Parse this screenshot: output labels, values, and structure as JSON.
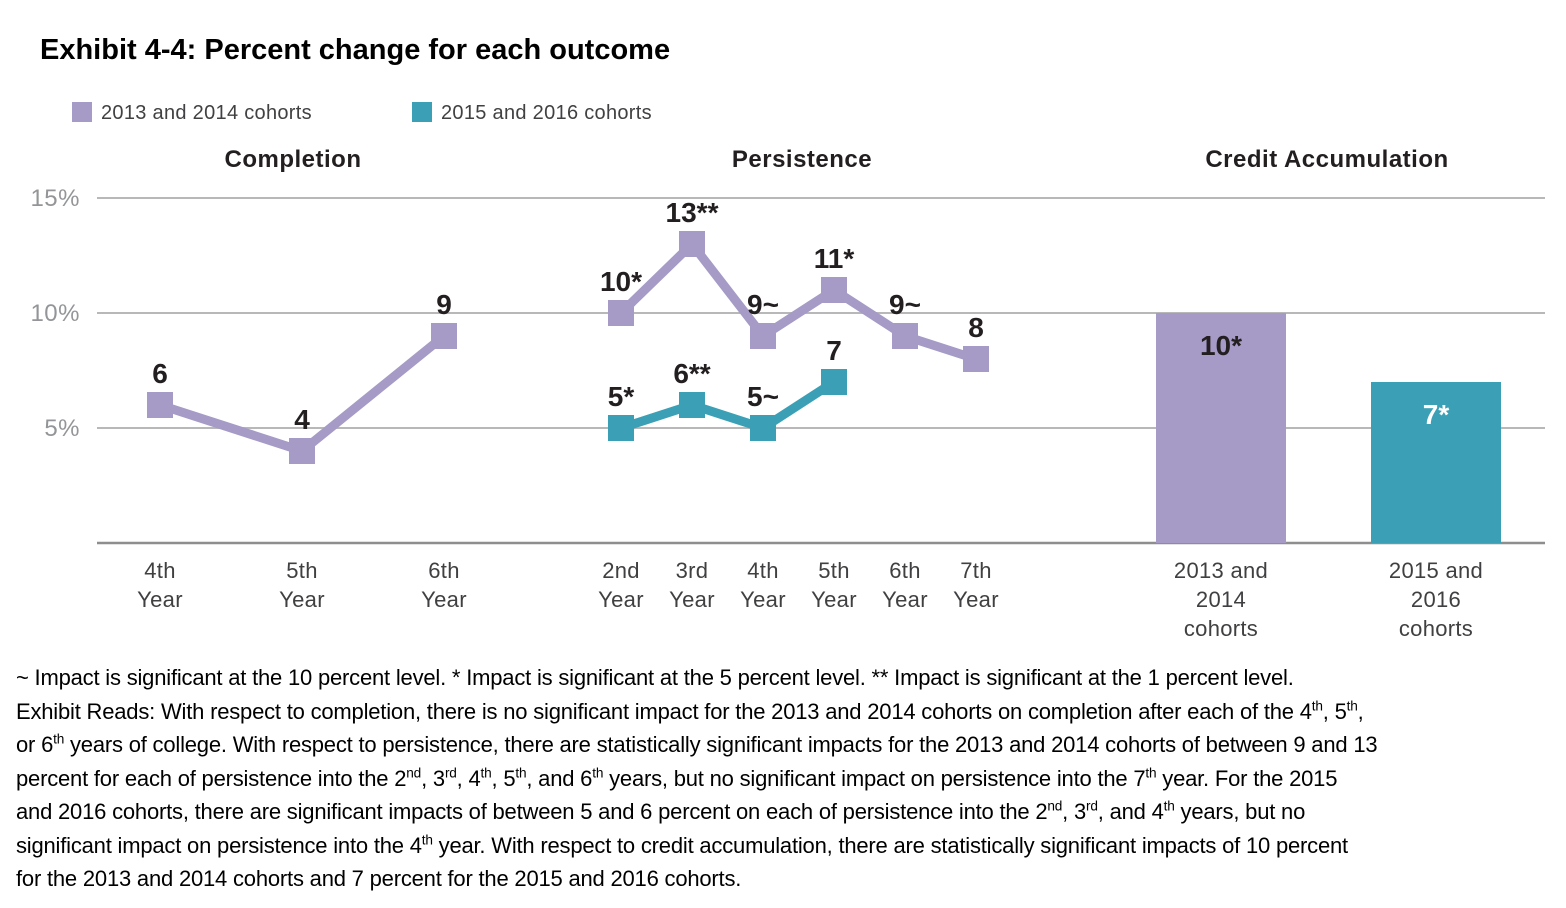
{
  "title": "Exhibit 4-4: Percent change for each outcome",
  "legend": [
    {
      "label": "2013 and 2014 cohorts",
      "color": "#a69ac6"
    },
    {
      "label": "2015 and 2016 cohorts",
      "color": "#3ba0b5"
    }
  ],
  "colors": {
    "purple": "#a69ac6",
    "teal": "#3ba0b5",
    "grid": "#b8b8b8",
    "axis": "#8e8e8e",
    "tick_text": "#939598",
    "label_black": "#231f20"
  },
  "chart_data": [
    {
      "type": "line",
      "title": "Completion",
      "categories": [
        "4th\nYear",
        "5th\nYear",
        "6th\nYear"
      ],
      "series": [
        {
          "name": "2013 and 2014 cohorts",
          "color": "#a69ac6",
          "values": [
            6,
            4,
            9
          ],
          "point_labels": [
            "6",
            "4",
            "9"
          ]
        }
      ],
      "ylim": [
        0,
        15
      ],
      "yticks": [
        {
          "value": 5,
          "label": "5%"
        },
        {
          "value": 10,
          "label": "10%"
        },
        {
          "value": 15,
          "label": "15%"
        }
      ],
      "grid": true,
      "legend_position": "top-left"
    },
    {
      "type": "line",
      "title": "Persistence",
      "categories": [
        "2nd\nYear",
        "3rd\nYear",
        "4th\nYear",
        "5th\nYear",
        "6th\nYear",
        "7th\nYear"
      ],
      "series": [
        {
          "name": "2013 and 2014 cohorts",
          "color": "#a69ac6",
          "values": [
            10,
            13,
            9,
            11,
            9,
            8
          ],
          "point_labels": [
            "10*",
            "13**",
            "9~",
            "11*",
            "9~",
            "8"
          ]
        },
        {
          "name": "2015 and 2016 cohorts",
          "color": "#3ba0b5",
          "values": [
            5,
            6,
            5,
            7
          ],
          "point_labels": [
            "5*",
            "6**",
            "5~",
            "7"
          ]
        }
      ],
      "ylim": [
        0,
        15
      ]
    },
    {
      "type": "bar",
      "title": "Credit Accumulation",
      "categories": [
        "2013 and\n2014\ncohorts",
        "2015 and\n2016\ncohorts"
      ],
      "bars": [
        {
          "name": "2013 and 2014 cohorts",
          "value": 10,
          "label": "10*",
          "color": "#a69ac6",
          "label_color": "#231f20"
        },
        {
          "name": "2015 and 2016 cohorts",
          "value": 7,
          "label": "7*",
          "color": "#3ba0b5",
          "label_color": "#ffffff"
        }
      ],
      "ylim": [
        0,
        15
      ]
    }
  ],
  "footnote": {
    "lines": [
      [
        {
          "t": "~ Impact is significant at the 10 percent level. * Impact is significant at the 5 percent level. ** Impact is significant at the 1 percent level."
        }
      ],
      [
        {
          "t": "Exhibit Reads: With respect to completion, there is no significant impact for the 2013 and 2014 cohorts on completion after each of the 4"
        },
        {
          "t": "th",
          "sup": true
        },
        {
          "t": ", 5"
        },
        {
          "t": "th",
          "sup": true
        },
        {
          "t": ","
        }
      ],
      [
        {
          "t": "or 6"
        },
        {
          "t": "th",
          "sup": true
        },
        {
          "t": " years of college. With respect to persistence, there are statistically significant impacts for the 2013 and 2014 cohorts of between 9 and 13"
        }
      ],
      [
        {
          "t": "percent for each of persistence into the 2"
        },
        {
          "t": "nd",
          "sup": true
        },
        {
          "t": ", 3"
        },
        {
          "t": "rd",
          "sup": true
        },
        {
          "t": ", 4"
        },
        {
          "t": "th",
          "sup": true
        },
        {
          "t": ", 5"
        },
        {
          "t": "th",
          "sup": true
        },
        {
          "t": ", and 6"
        },
        {
          "t": "th",
          "sup": true
        },
        {
          "t": " years, but no significant impact on persistence into the 7"
        },
        {
          "t": "th",
          "sup": true
        },
        {
          "t": " year. For the 2015"
        }
      ],
      [
        {
          "t": "and 2016 cohorts, there are significant impacts of between 5 and 6 percent on each of persistence into the 2"
        },
        {
          "t": "nd",
          "sup": true
        },
        {
          "t": ", 3"
        },
        {
          "t": "rd",
          "sup": true
        },
        {
          "t": ", and 4"
        },
        {
          "t": "th",
          "sup": true
        },
        {
          "t": " years, but no"
        }
      ],
      [
        {
          "t": "significant impact on persistence into the 4"
        },
        {
          "t": "th",
          "sup": true
        },
        {
          "t": " year. With respect to credit accumulation, there are statistically significant impacts of 10 percent"
        }
      ],
      [
        {
          "t": "for the 2013 and 2014 cohorts and 7 percent for the 2015 and 2016 cohorts."
        }
      ]
    ]
  }
}
